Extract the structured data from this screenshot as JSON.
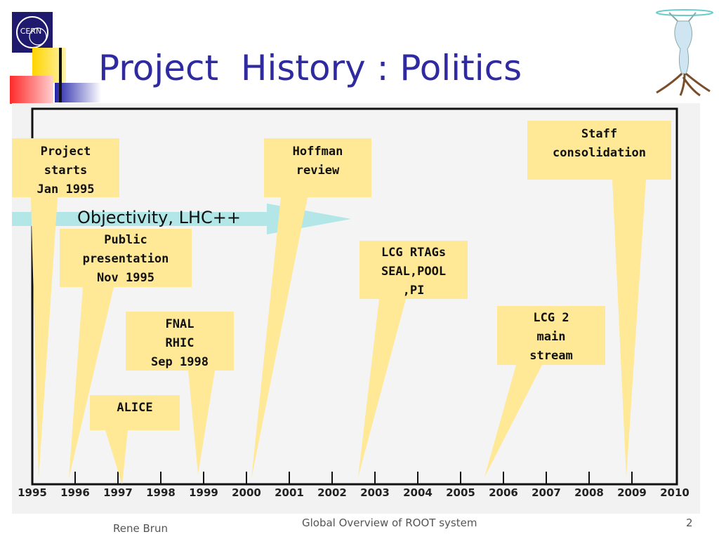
{
  "slide": {
    "title": "Project  History : Politics",
    "logo_text": "CERN",
    "footer_author": "Rene Brun",
    "footer_center": "Global Overview of ROOT system",
    "page_number": "2"
  },
  "timeline": {
    "years": [
      "1995",
      "1996",
      "1997",
      "1998",
      "1999",
      "2000",
      "2001",
      "2002",
      "2003",
      "2004",
      "2005",
      "2006",
      "2007",
      "2008",
      "2009",
      "2010"
    ],
    "arrow_label": "Objectivity, LHC++",
    "callouts": [
      {
        "id": "project-starts",
        "text": "Project\nstarts\nJan 1995"
      },
      {
        "id": "hoffman-review",
        "text": "Hoffman\nreview"
      },
      {
        "id": "staff-consolidation",
        "text": "Staff\nconsolidation"
      },
      {
        "id": "public-presentation",
        "text": "Public\npresentation\nNov 1995"
      },
      {
        "id": "lcg-rtags",
        "text": "LCG RTAGs\nSEAL,POOL\n,PI"
      },
      {
        "id": "fnal-rhic",
        "text": "FNAL\nRHIC\nSep 1998"
      },
      {
        "id": "lcg2",
        "text": "LCG 2\nmain\nstream"
      },
      {
        "id": "alice",
        "text": "ALICE"
      }
    ]
  },
  "colors": {
    "title": "#2f2aa0",
    "callout": "#ffe896",
    "arrow": "#b3e6e6",
    "panel": "#f2f2f2"
  }
}
